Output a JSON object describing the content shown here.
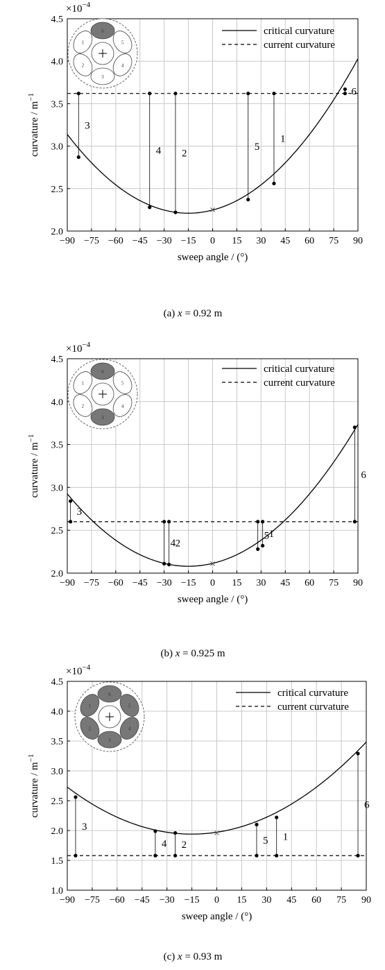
{
  "chart_data": [
    {
      "type": "line",
      "caption": "(a) x = 0.92 m",
      "caption_prefix": "(a) ",
      "caption_var": "x",
      "caption_rest": " = 0.92 m",
      "xlabel": "sweep angle / (°)",
      "ylabel": "curvature / m",
      "ylabel_exp": "−1",
      "y_multiplier": "×10",
      "y_multiplier_exp": "−4",
      "xlim": [
        -90,
        90
      ],
      "ylim": [
        2.0,
        4.5
      ],
      "xticks": [
        -90,
        -75,
        -60,
        -45,
        -30,
        -15,
        0,
        15,
        30,
        45,
        60,
        75,
        90
      ],
      "xtick_labels": [
        "−90",
        "−75",
        "−60",
        "−45",
        "−30",
        "−15",
        "0",
        "15",
        "30",
        "45",
        "60",
        "75",
        "90"
      ],
      "yticks": [
        2.0,
        2.5,
        3.0,
        3.5,
        4.0,
        4.5
      ],
      "ytick_labels": [
        "2.0",
        "2.5",
        "3.0",
        "3.5",
        "4.0",
        "4.5"
      ],
      "grid": true,
      "legend_position": "top-right",
      "series": [
        {
          "name": "critical curvature",
          "style": "solid",
          "curve": {
            "vertex_x": -15,
            "vertex_y": 2.21,
            "coef": 0.000165
          }
        },
        {
          "name": "current curvature",
          "style": "dashed",
          "y": 3.62
        }
      ],
      "min_marker": {
        "x": 0,
        "y": 2.25
      },
      "points": [
        {
          "label": "3",
          "x": -83,
          "y": 2.87
        },
        {
          "label": "4",
          "x": -39,
          "y": 2.28
        },
        {
          "label": "2",
          "x": -23,
          "y": 2.22
        },
        {
          "label": "5",
          "x": 22,
          "y": 2.37
        },
        {
          "label": "1",
          "x": 38,
          "y": 2.56
        },
        {
          "label": "6",
          "x": 82,
          "y": 3.67
        }
      ],
      "inset_filled": [
        0
      ]
    },
    {
      "type": "line",
      "caption": "(b) x = 0.925 m",
      "caption_prefix": "(b) ",
      "caption_var": "x",
      "caption_rest": " = 0.925 m",
      "xlabel": "sweep angle / (°)",
      "ylabel": "curvature / m",
      "ylabel_exp": "−1",
      "y_multiplier": "×10",
      "y_multiplier_exp": "−4",
      "xlim": [
        -90,
        90
      ],
      "ylim": [
        2.0,
        4.5
      ],
      "xticks": [
        -90,
        -75,
        -60,
        -45,
        -30,
        -15,
        0,
        15,
        30,
        45,
        60,
        75,
        90
      ],
      "xtick_labels": [
        "−90",
        "−75",
        "−60",
        "−45",
        "−30",
        "−15",
        "0",
        "15",
        "30",
        "45",
        "60",
        "75",
        "90"
      ],
      "yticks": [
        2.0,
        2.5,
        3.0,
        3.5,
        4.0,
        4.5
      ],
      "ytick_labels": [
        "2.0",
        "2.5",
        "3.0",
        "3.5",
        "4.0",
        "4.5"
      ],
      "grid": true,
      "legend_position": "top-right",
      "series": [
        {
          "name": "critical curvature",
          "style": "solid",
          "curve": {
            "vertex_x": -15,
            "vertex_y": 2.08,
            "coef": 0.00015
          }
        },
        {
          "name": "current curvature",
          "style": "dashed",
          "y": 2.6
        }
      ],
      "min_marker": {
        "x": 0,
        "y": 2.11
      },
      "points": [
        {
          "label": "3",
          "x": -88,
          "y": 2.84
        },
        {
          "label": "4",
          "x": -30,
          "y": 2.11
        },
        {
          "label": "2",
          "x": -27,
          "y": 2.1
        },
        {
          "label": "5",
          "x": 28,
          "y": 2.28
        },
        {
          "label": "1",
          "x": 31,
          "y": 2.32
        },
        {
          "label": "6",
          "x": 88,
          "y": 3.7
        }
      ],
      "inset_filled": [
        0,
        3
      ]
    },
    {
      "type": "line",
      "caption": "(c) x = 0.93 m",
      "caption_prefix": "(c) ",
      "caption_var": "x",
      "caption_rest": " = 0.93 m",
      "xlabel": "sweep angle / (°)",
      "ylabel": "curvature / m",
      "ylabel_exp": "−1",
      "y_multiplier": "×10",
      "y_multiplier_exp": "−4",
      "xlim": [
        -90,
        90
      ],
      "ylim": [
        1.0,
        4.5
      ],
      "xticks": [
        -90,
        -75,
        -60,
        -45,
        -30,
        -15,
        0,
        15,
        30,
        45,
        60,
        75,
        90
      ],
      "xtick_labels": [
        "−90",
        "−75",
        "−60",
        "−45",
        "−30",
        "−15",
        "0",
        "15",
        "30",
        "45",
        "60",
        "75",
        "90"
      ],
      "yticks": [
        1.0,
        1.5,
        2.0,
        2.5,
        3.0,
        3.5,
        4.0,
        4.5
      ],
      "ytick_labels": [
        "1.0",
        "1.5",
        "2.0",
        "2.5",
        "3.0",
        "3.5",
        "4.0",
        "4.5"
      ],
      "grid": true,
      "legend_position": "top-right",
      "series": [
        {
          "name": "critical curvature",
          "style": "solid",
          "curve": {
            "vertex_x": -15,
            "vertex_y": 1.94,
            "coef": 0.00014
          }
        },
        {
          "name": "current curvature",
          "style": "dashed",
          "y": 1.58
        }
      ],
      "min_marker": {
        "x": 0,
        "y": 1.96
      },
      "points": [
        {
          "label": "3",
          "x": -85,
          "y": 2.56
        },
        {
          "label": "4",
          "x": -37,
          "y": 1.99
        },
        {
          "label": "2",
          "x": -25,
          "y": 1.96
        },
        {
          "label": "5",
          "x": 24,
          "y": 2.1
        },
        {
          "label": "1",
          "x": 36,
          "y": 2.22
        },
        {
          "label": "6",
          "x": 85,
          "y": 3.29
        }
      ],
      "inset_filled": [
        0,
        1,
        2,
        3,
        4,
        5
      ]
    }
  ],
  "inset_labels": [
    "6",
    "5",
    "4",
    "3",
    "2",
    "1"
  ],
  "colors": {
    "filled": "#777777",
    "empty": "#ffffff",
    "line": "#000000",
    "grid": "#c8c8c8"
  }
}
